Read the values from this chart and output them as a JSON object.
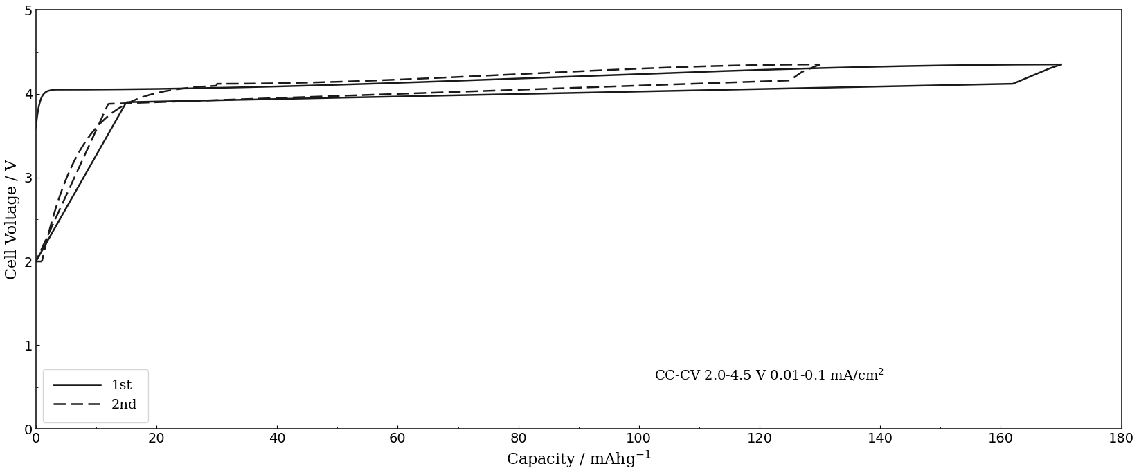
{
  "title": "",
  "xlabel": "Capacity / mAhg$^{-1}$",
  "ylabel": "Cell Voltage / V",
  "xlim": [
    0,
    180
  ],
  "ylim": [
    0,
    5
  ],
  "xticks": [
    0,
    20,
    40,
    60,
    80,
    100,
    120,
    140,
    160,
    180
  ],
  "yticks": [
    0,
    1,
    2,
    3,
    4,
    5
  ],
  "annotation": "CC-CV 2.0-4.5 V 0.01-0.1 mA/cm$^2$",
  "legend_1st": "1st",
  "legend_2nd": "2nd",
  "background_color": "#ffffff",
  "line_color": "#1a1a1a"
}
